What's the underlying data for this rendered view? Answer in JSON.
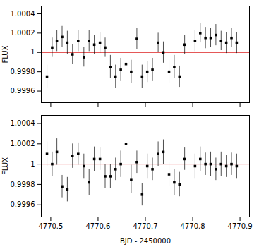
{
  "chart_data": [
    {
      "type": "scatter",
      "marker": "square",
      "color": "black",
      "x": [
        4770.492,
        4770.503,
        4770.513,
        4770.524,
        4770.535,
        4770.546,
        4770.558,
        4770.57,
        4770.581,
        4770.592,
        4770.604,
        4770.615,
        4770.626,
        4770.637,
        4770.648,
        4770.659,
        4770.67,
        4770.682,
        4770.693,
        4770.704,
        4770.715,
        4770.727,
        4770.738,
        4770.75,
        4770.761,
        4770.772,
        4770.783,
        4770.805,
        4770.816,
        4770.827,
        4770.838,
        4770.849,
        4770.86,
        4770.871,
        4770.882,
        4770.893
      ],
      "values": [
        0.99975,
        1.00005,
        1.00012,
        1.00016,
        1.0001,
        0.99998,
        1.00012,
        0.99995,
        1.00012,
        1.00008,
        1.0001,
        1.00005,
        0.99985,
        0.99975,
        0.99982,
        0.99988,
        0.9998,
        1.00014,
        0.99975,
        0.9998,
        0.99982,
        1.0001,
        1.0,
        0.9998,
        0.99985,
        0.99975,
        1.00008,
        1.00012,
        1.0002,
        1.00015,
        1.00015,
        1.00018,
        1.00012,
        1.0001,
        1.00015,
        1.0001
      ],
      "yerr": [
        0.00012,
        0.0001,
        0.00011,
        0.00011,
        0.00012,
        0.0001,
        0.00011,
        0.0001,
        0.00011,
        0.0001,
        0.00011,
        0.0001,
        0.00012,
        0.00012,
        0.00012,
        0.00011,
        0.00012,
        0.00011,
        0.00012,
        0.00011,
        0.00012,
        0.0001,
        0.00011,
        0.00012,
        0.00012,
        0.00011,
        0.0001,
        0.00011,
        0.0001,
        0.00011,
        0.0001,
        0.00011,
        0.0001,
        0.00011,
        0.0001,
        0.00011
      ],
      "xlim": [
        4770.48,
        4770.92
      ],
      "xticks": [
        4770.5,
        4770.6,
        4770.7,
        4770.8,
        4770.9
      ],
      "ylim": [
        0.99948,
        1.00048
      ],
      "yticks": [
        0.9996,
        0.9998,
        1,
        1.0002,
        1.0004
      ],
      "ylabel": "FLUX",
      "tick_labels": "y",
      "hline": {
        "y": 1.0,
        "color": "#dd2222"
      }
    },
    {
      "type": "scatter",
      "marker": "square",
      "color": "black",
      "x": [
        4770.492,
        4770.503,
        4770.513,
        4770.524,
        4770.535,
        4770.546,
        4770.558,
        4770.57,
        4770.581,
        4770.592,
        4770.604,
        4770.615,
        4770.626,
        4770.637,
        4770.648,
        4770.659,
        4770.67,
        4770.682,
        4770.693,
        4770.704,
        4770.715,
        4770.727,
        4770.738,
        4770.75,
        4770.761,
        4770.772,
        4770.783,
        4770.805,
        4770.816,
        4770.827,
        4770.838,
        4770.849,
        4770.86,
        4770.871,
        4770.882,
        4770.893
      ],
      "values": [
        1.0001,
        1.0,
        1.00012,
        0.99978,
        0.99975,
        1.00008,
        1.0001,
        0.99998,
        0.99982,
        1.00005,
        1.00005,
        0.99988,
        0.99988,
        0.99995,
        1.0,
        1.0002,
        0.99985,
        1.00002,
        0.9997,
        0.99998,
        0.99995,
        1.0001,
        1.00012,
        0.9999,
        0.99982,
        0.9998,
        1.00005,
        0.99998,
        1.00005,
        1.0,
        1.0,
        0.99995,
        1.0,
        0.99998,
        1.0,
        0.99998
      ],
      "yerr": [
        0.00012,
        0.00012,
        0.00013,
        0.00011,
        0.00012,
        0.00012,
        0.00011,
        0.00012,
        0.00013,
        0.00012,
        0.00011,
        0.00012,
        0.00012,
        0.00011,
        0.00013,
        0.00012,
        0.00014,
        0.00011,
        0.00011,
        0.00012,
        0.00011,
        0.00012,
        0.00012,
        0.00012,
        0.00013,
        0.00012,
        0.00011,
        0.00012,
        0.00012,
        0.00011,
        0.00012,
        0.00011,
        0.00012,
        0.00011,
        0.00011,
        0.00012
      ],
      "xlim": [
        4770.48,
        4770.92
      ],
      "xticks": [
        4770.5,
        4770.6,
        4770.7,
        4770.8,
        4770.9
      ],
      "ylim": [
        0.99948,
        1.00048
      ],
      "yticks": [
        0.9996,
        0.9998,
        1,
        1.0002,
        1.0004
      ],
      "xlabel": "BJD - 2450000",
      "ylabel": "FLUX",
      "hline": {
        "y": 1.0,
        "color": "#dd2222"
      }
    }
  ]
}
